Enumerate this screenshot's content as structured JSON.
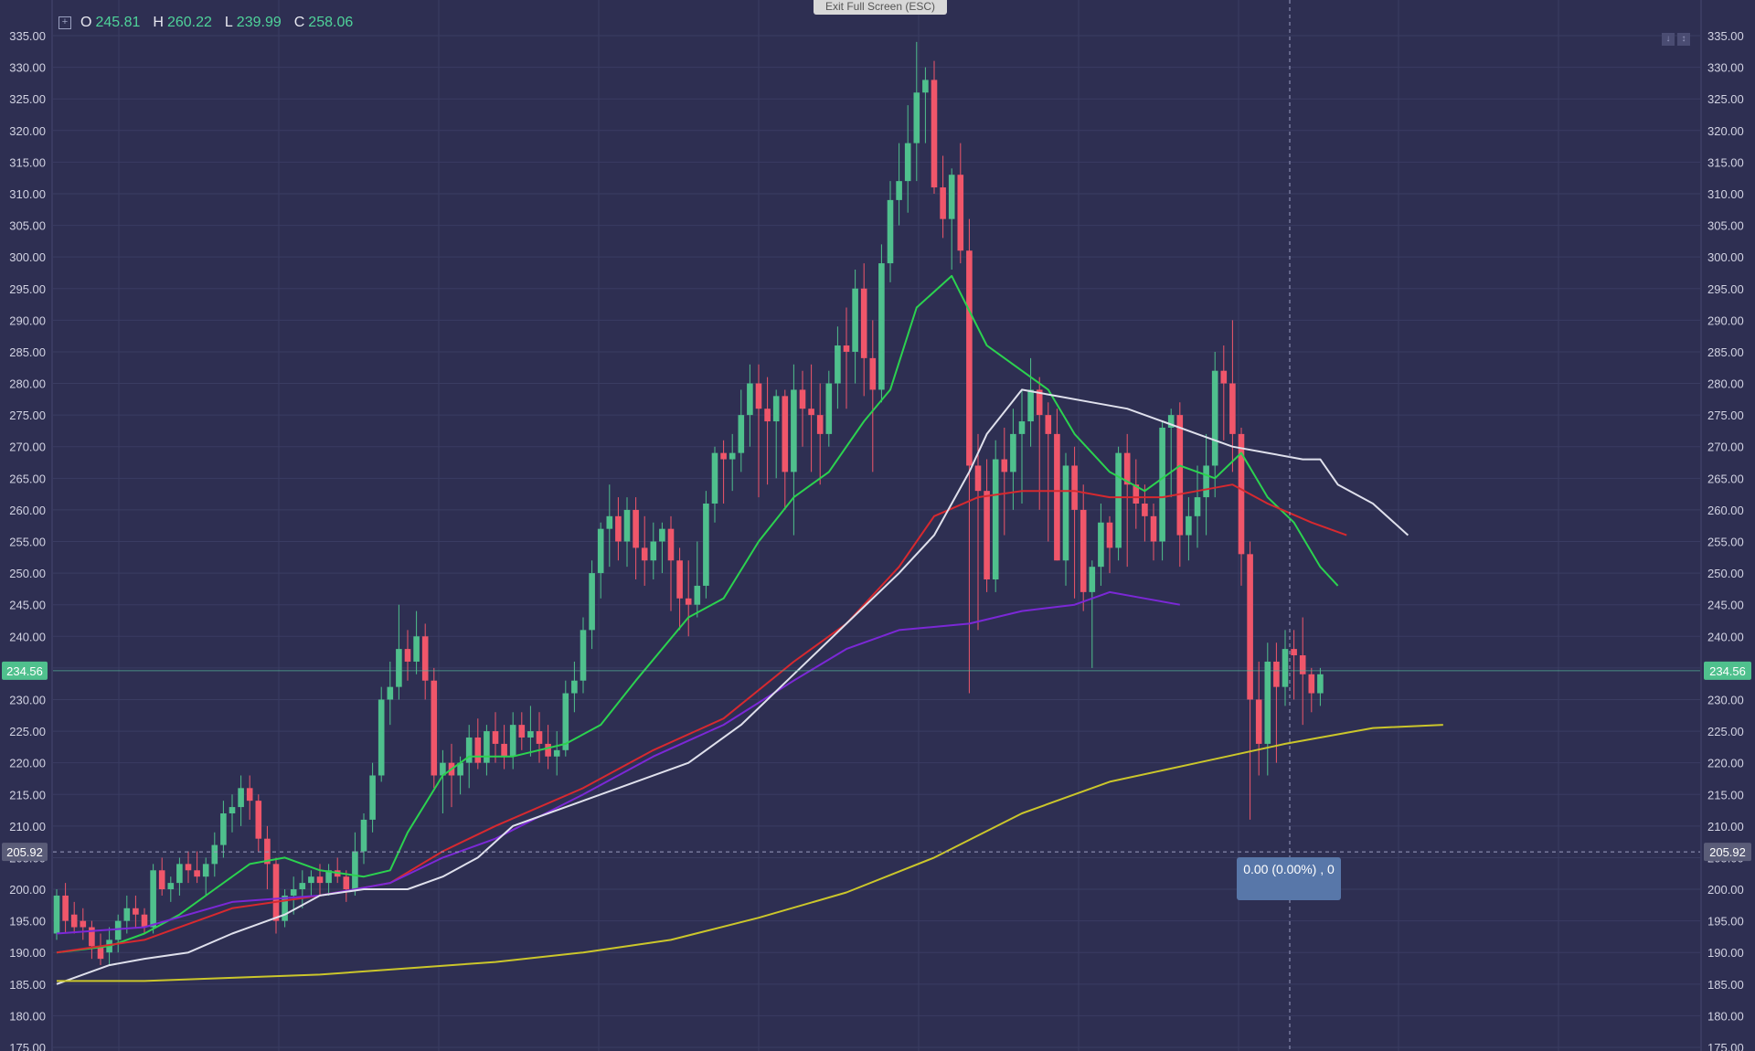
{
  "toolbar": {
    "exit_fullscreen_label": "Exit Full Screen (ESC)",
    "ohlc": {
      "o_key": "O",
      "o": "245.81",
      "h_key": "H",
      "h": "260.22",
      "l_key": "L",
      "l": "239.99",
      "c_key": "C",
      "c": "258.06"
    }
  },
  "crosshair": {
    "tooltip": "0.00 (0.00%) , 0",
    "price_label": "205.92"
  },
  "last_price_label": "234.56",
  "colors": {
    "background": "#2e2f52",
    "up": "#4fc08d",
    "down": "#f0566a",
    "grid": "#3a3c62",
    "axis_text": "#d2d3e3"
  },
  "chart_data": {
    "type": "candlestick",
    "ylim": [
      175,
      335
    ],
    "yticks": [
      "335.00",
      "330.00",
      "325.00",
      "320.00",
      "315.00",
      "310.00",
      "305.00",
      "300.00",
      "295.00",
      "290.00",
      "285.00",
      "280.00",
      "275.00",
      "270.00",
      "265.00",
      "260.00",
      "255.00",
      "250.00",
      "245.00",
      "240.00",
      "235.00",
      "230.00",
      "225.00",
      "220.00",
      "215.00",
      "210.00",
      "205.00",
      "200.00",
      "195.00",
      "190.00",
      "185.00",
      "180.00",
      "175.00"
    ],
    "last_price": 234.56,
    "crosshair_price": 205.92,
    "candles": [
      [
        193,
        200,
        192,
        199
      ],
      [
        199,
        201,
        193,
        195
      ],
      [
        196,
        198,
        193,
        194
      ],
      [
        195,
        197,
        192,
        194
      ],
      [
        194,
        195,
        189,
        191
      ],
      [
        191,
        193,
        188,
        189
      ],
      [
        190,
        194,
        188,
        192
      ],
      [
        192,
        196,
        190,
        195
      ],
      [
        195,
        199,
        193,
        197
      ],
      [
        197,
        199,
        194,
        196
      ],
      [
        196,
        197,
        193,
        194
      ],
      [
        194,
        204,
        193,
        203
      ],
      [
        203,
        205,
        199,
        200
      ],
      [
        200,
        202,
        198,
        201
      ],
      [
        201,
        205,
        199,
        204
      ],
      [
        204,
        206,
        201,
        203
      ],
      [
        203,
        206,
        201,
        202
      ],
      [
        202,
        205,
        199,
        204
      ],
      [
        204,
        209,
        202,
        207
      ],
      [
        207,
        214,
        205,
        212
      ],
      [
        212,
        215,
        209,
        213
      ],
      [
        213,
        218,
        210,
        216
      ],
      [
        216,
        218,
        211,
        214
      ],
      [
        214,
        215,
        206,
        208
      ],
      [
        208,
        210,
        200,
        204
      ],
      [
        204,
        205,
        193,
        195
      ],
      [
        195,
        200,
        194,
        199
      ],
      [
        199,
        202,
        196,
        200
      ],
      [
        200,
        203,
        197,
        201
      ],
      [
        201,
        203,
        199,
        202
      ],
      [
        202,
        204,
        199,
        201
      ],
      [
        201,
        204,
        199,
        203
      ],
      [
        203,
        205,
        201,
        202
      ],
      [
        202,
        203,
        198,
        200
      ],
      [
        200,
        209,
        199,
        206
      ],
      [
        206,
        212,
        204,
        211
      ],
      [
        211,
        220,
        209,
        218
      ],
      [
        218,
        232,
        217,
        230
      ],
      [
        230,
        236,
        226,
        232
      ],
      [
        232,
        245,
        230,
        238
      ],
      [
        238,
        241,
        233,
        236
      ],
      [
        236,
        244,
        234,
        240
      ],
      [
        240,
        242,
        230,
        233
      ],
      [
        233,
        235,
        216,
        218
      ],
      [
        218,
        222,
        212,
        220
      ],
      [
        220,
        223,
        213,
        218
      ],
      [
        218,
        221,
        215,
        220
      ],
      [
        220,
        226,
        216,
        224
      ],
      [
        224,
        227,
        219,
        220
      ],
      [
        220,
        226,
        218,
        225
      ],
      [
        225,
        228,
        220,
        223
      ],
      [
        223,
        226,
        219,
        221
      ],
      [
        221,
        228,
        219,
        226
      ],
      [
        226,
        228,
        222,
        224
      ],
      [
        224,
        229,
        221,
        225
      ],
      [
        225,
        228,
        220,
        223
      ],
      [
        223,
        226,
        219,
        221
      ],
      [
        221,
        225,
        218,
        222
      ],
      [
        222,
        233,
        221,
        231
      ],
      [
        231,
        236,
        228,
        233
      ],
      [
        233,
        243,
        231,
        241
      ],
      [
        241,
        252,
        238,
        250
      ],
      [
        250,
        258,
        246,
        257
      ],
      [
        257,
        264,
        251,
        259
      ],
      [
        259,
        262,
        252,
        255
      ],
      [
        255,
        262,
        251,
        260
      ],
      [
        260,
        262,
        249,
        254
      ],
      [
        254,
        259,
        248,
        252
      ],
      [
        252,
        258,
        249,
        255
      ],
      [
        255,
        258,
        250,
        257
      ],
      [
        257,
        259,
        244,
        252
      ],
      [
        252,
        254,
        241,
        246
      ],
      [
        246,
        252,
        240,
        245
      ],
      [
        245,
        255,
        243,
        248
      ],
      [
        248,
        263,
        246,
        261
      ],
      [
        261,
        270,
        258,
        269
      ],
      [
        269,
        271,
        261,
        268
      ],
      [
        268,
        272,
        263,
        269
      ],
      [
        269,
        279,
        266,
        275
      ],
      [
        275,
        283,
        270,
        280
      ],
      [
        280,
        283,
        262,
        276
      ],
      [
        276,
        281,
        264,
        274
      ],
      [
        274,
        279,
        265,
        278
      ],
      [
        278,
        279,
        260,
        266
      ],
      [
        266,
        283,
        256,
        279
      ],
      [
        279,
        282,
        270,
        276
      ],
      [
        276,
        283,
        266,
        275
      ],
      [
        275,
        280,
        264,
        272
      ],
      [
        272,
        282,
        270,
        280
      ],
      [
        280,
        289,
        276,
        286
      ],
      [
        286,
        292,
        276,
        285
      ],
      [
        285,
        298,
        280,
        295
      ],
      [
        295,
        299,
        278,
        284
      ],
      [
        284,
        290,
        266,
        279
      ],
      [
        279,
        302,
        277,
        299
      ],
      [
        299,
        312,
        296,
        309
      ],
      [
        309,
        318,
        305,
        312
      ],
      [
        312,
        324,
        307,
        318
      ],
      [
        318,
        334,
        312,
        326
      ],
      [
        326,
        330,
        318,
        328
      ],
      [
        328,
        331,
        310,
        311
      ],
      [
        311,
        316,
        303,
        306
      ],
      [
        306,
        314,
        298,
        313
      ],
      [
        313,
        318,
        299,
        301
      ],
      [
        301,
        306,
        231,
        267
      ],
      [
        267,
        272,
        241,
        263
      ],
      [
        263,
        268,
        247,
        249
      ],
      [
        249,
        271,
        247,
        268
      ],
      [
        268,
        273,
        256,
        266
      ],
      [
        266,
        276,
        260,
        272
      ],
      [
        272,
        279,
        261,
        274
      ],
      [
        274,
        284,
        270,
        279
      ],
      [
        279,
        281,
        260,
        275
      ],
      [
        275,
        277,
        255,
        272
      ],
      [
        272,
        276,
        252,
        252
      ],
      [
        252,
        269,
        248,
        267
      ],
      [
        267,
        270,
        246,
        260
      ],
      [
        260,
        264,
        244,
        247
      ],
      [
        247,
        252,
        235,
        251
      ],
      [
        251,
        261,
        248,
        258
      ],
      [
        258,
        259,
        250,
        254
      ],
      [
        254,
        270,
        252,
        269
      ],
      [
        269,
        272,
        251,
        264
      ],
      [
        264,
        268,
        257,
        261
      ],
      [
        261,
        264,
        255,
        259
      ],
      [
        259,
        261,
        252,
        255
      ],
      [
        255,
        274,
        252,
        273
      ],
      [
        273,
        276,
        262,
        275
      ],
      [
        275,
        277,
        251,
        256
      ],
      [
        256,
        262,
        252,
        259
      ],
      [
        259,
        267,
        254,
        262
      ],
      [
        262,
        272,
        256,
        267
      ],
      [
        267,
        285,
        262,
        282
      ],
      [
        282,
        286,
        271,
        280
      ],
      [
        280,
        290,
        266,
        272
      ],
      [
        272,
        273,
        248,
        253
      ],
      [
        253,
        255,
        211,
        230
      ],
      [
        230,
        236,
        218,
        223
      ],
      [
        223,
        239,
        218,
        236
      ],
      [
        236,
        239,
        220,
        232
      ],
      [
        232,
        241,
        229,
        238
      ],
      [
        238,
        241,
        230,
        237
      ],
      [
        237,
        243,
        226,
        234
      ],
      [
        234,
        235,
        228,
        231
      ],
      [
        231,
        235,
        229,
        234
      ]
    ],
    "series": [
      {
        "color": "#2bd24f",
        "points": [
          [
            0,
            190
          ],
          [
            6,
            191
          ],
          [
            10,
            193
          ],
          [
            14,
            196
          ],
          [
            18,
            200
          ],
          [
            22,
            204
          ],
          [
            26,
            205
          ],
          [
            30,
            203
          ],
          [
            35,
            202
          ],
          [
            38,
            203
          ],
          [
            40,
            209
          ],
          [
            44,
            218
          ],
          [
            47,
            221
          ],
          [
            52,
            221
          ],
          [
            58,
            223
          ],
          [
            62,
            226
          ],
          [
            66,
            233
          ],
          [
            72,
            243
          ],
          [
            76,
            246
          ],
          [
            80,
            255
          ],
          [
            84,
            262
          ],
          [
            88,
            266
          ],
          [
            92,
            274
          ],
          [
            95,
            279
          ],
          [
            98,
            292
          ],
          [
            102,
            297
          ],
          [
            106,
            286
          ],
          [
            110,
            282
          ],
          [
            113,
            279
          ],
          [
            116,
            272
          ],
          [
            120,
            266
          ],
          [
            124,
            263
          ],
          [
            128,
            267
          ],
          [
            132,
            265
          ],
          [
            135,
            269
          ],
          [
            138,
            262
          ],
          [
            141,
            258
          ],
          [
            144,
            251
          ],
          [
            146,
            248
          ]
        ]
      },
      {
        "color": "#d7292f",
        "points": [
          [
            0,
            190
          ],
          [
            10,
            192
          ],
          [
            20,
            197
          ],
          [
            30,
            199
          ],
          [
            38,
            201
          ],
          [
            44,
            206
          ],
          [
            50,
            210
          ],
          [
            60,
            216
          ],
          [
            68,
            222
          ],
          [
            76,
            227
          ],
          [
            84,
            236
          ],
          [
            90,
            242
          ],
          [
            96,
            251
          ],
          [
            100,
            259
          ],
          [
            105,
            262
          ],
          [
            110,
            263
          ],
          [
            116,
            263
          ],
          [
            120,
            262
          ],
          [
            126,
            262
          ],
          [
            130,
            263
          ],
          [
            134,
            264
          ],
          [
            138,
            261
          ],
          [
            143,
            258
          ],
          [
            147,
            256
          ]
        ]
      },
      {
        "color": "#7b28d6",
        "points": [
          [
            0,
            193
          ],
          [
            10,
            194
          ],
          [
            20,
            198
          ],
          [
            30,
            199
          ],
          [
            38,
            201
          ],
          [
            44,
            205
          ],
          [
            50,
            208
          ],
          [
            60,
            215
          ],
          [
            68,
            221
          ],
          [
            76,
            226
          ],
          [
            84,
            233
          ],
          [
            90,
            238
          ],
          [
            96,
            241
          ],
          [
            104,
            242
          ],
          [
            110,
            244
          ],
          [
            116,
            245
          ],
          [
            120,
            247
          ],
          [
            124,
            246
          ],
          [
            128,
            245
          ]
        ]
      },
      {
        "color": "#dfe0ec",
        "points": [
          [
            0,
            185
          ],
          [
            6,
            188
          ],
          [
            10,
            189
          ],
          [
            15,
            190
          ],
          [
            20,
            193
          ],
          [
            26,
            196
          ],
          [
            30,
            199
          ],
          [
            35,
            200
          ],
          [
            40,
            200
          ],
          [
            44,
            202
          ],
          [
            48,
            205
          ],
          [
            52,
            210
          ],
          [
            56,
            212
          ],
          [
            60,
            214
          ],
          [
            66,
            217
          ],
          [
            72,
            220
          ],
          [
            78,
            226
          ],
          [
            84,
            234
          ],
          [
            90,
            242
          ],
          [
            96,
            250
          ],
          [
            100,
            256
          ],
          [
            104,
            266
          ],
          [
            106,
            272
          ],
          [
            110,
            279
          ],
          [
            114,
            278
          ],
          [
            118,
            277
          ],
          [
            122,
            276
          ],
          [
            126,
            274
          ],
          [
            130,
            272
          ],
          [
            134,
            270
          ],
          [
            138,
            269
          ],
          [
            142,
            268
          ],
          [
            144,
            268
          ],
          [
            146,
            264
          ],
          [
            150,
            261
          ],
          [
            154,
            256
          ]
        ]
      },
      {
        "color": "#cbc62b",
        "points": [
          [
            0,
            185.5
          ],
          [
            10,
            185.5
          ],
          [
            20,
            186
          ],
          [
            30,
            186.5
          ],
          [
            40,
            187.5
          ],
          [
            50,
            188.5
          ],
          [
            60,
            190
          ],
          [
            70,
            192
          ],
          [
            80,
            195.5
          ],
          [
            90,
            199.5
          ],
          [
            100,
            205
          ],
          [
            110,
            212
          ],
          [
            120,
            217
          ],
          [
            130,
            220
          ],
          [
            140,
            223
          ],
          [
            150,
            225.5
          ],
          [
            158,
            226
          ]
        ]
      }
    ]
  }
}
